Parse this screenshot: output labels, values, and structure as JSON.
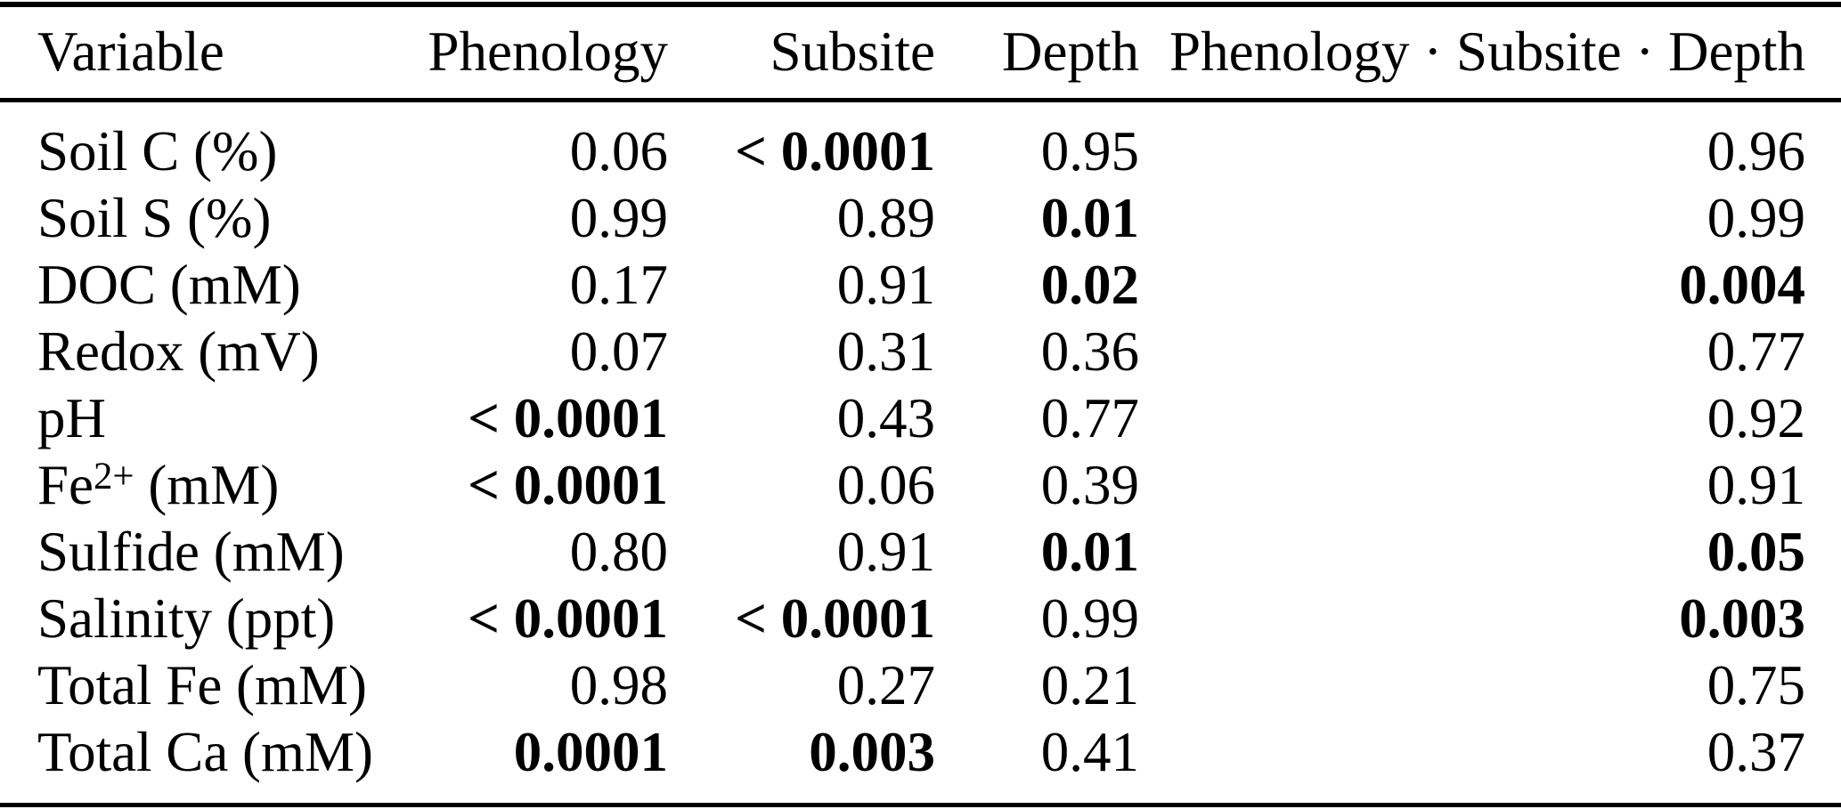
{
  "page": {
    "background": "#ffffff",
    "text_color": "#000000",
    "rule_color": "#000000"
  },
  "table": {
    "columns": [
      {
        "label": "Variable"
      },
      {
        "label": "Phenology"
      },
      {
        "label": "Subsite"
      },
      {
        "label": "Depth"
      },
      {
        "label": "Phenology · Subsite · Depth"
      }
    ],
    "rows": [
      {
        "variable": {
          "base": "Soil C (%)",
          "sup": "",
          "suffix": ""
        },
        "values": [
          {
            "text": "0.06",
            "bold": false
          },
          {
            "text": "< 0.0001",
            "bold": true
          },
          {
            "text": "0.95",
            "bold": false
          },
          {
            "text": "0.96",
            "bold": false
          }
        ]
      },
      {
        "variable": {
          "base": "Soil S (%)",
          "sup": "",
          "suffix": ""
        },
        "values": [
          {
            "text": "0.99",
            "bold": false
          },
          {
            "text": "0.89",
            "bold": false
          },
          {
            "text": "0.01",
            "bold": true
          },
          {
            "text": "0.99",
            "bold": false
          }
        ]
      },
      {
        "variable": {
          "base": "DOC (mM)",
          "sup": "",
          "suffix": ""
        },
        "values": [
          {
            "text": "0.17",
            "bold": false
          },
          {
            "text": "0.91",
            "bold": false
          },
          {
            "text": "0.02",
            "bold": true
          },
          {
            "text": "0.004",
            "bold": true
          }
        ]
      },
      {
        "variable": {
          "base": "Redox (mV)",
          "sup": "",
          "suffix": ""
        },
        "values": [
          {
            "text": "0.07",
            "bold": false
          },
          {
            "text": "0.31",
            "bold": false
          },
          {
            "text": "0.36",
            "bold": false
          },
          {
            "text": "0.77",
            "bold": false
          }
        ]
      },
      {
        "variable": {
          "base": "pH",
          "sup": "",
          "suffix": ""
        },
        "values": [
          {
            "text": "< 0.0001",
            "bold": true
          },
          {
            "text": "0.43",
            "bold": false
          },
          {
            "text": "0.77",
            "bold": false
          },
          {
            "text": "0.92",
            "bold": false
          }
        ]
      },
      {
        "variable": {
          "base": "Fe",
          "sup": "2+",
          "suffix": " (mM)"
        },
        "values": [
          {
            "text": "< 0.0001",
            "bold": true
          },
          {
            "text": "0.06",
            "bold": false
          },
          {
            "text": "0.39",
            "bold": false
          },
          {
            "text": "0.91",
            "bold": false
          }
        ]
      },
      {
        "variable": {
          "base": "Sulfide (mM)",
          "sup": "",
          "suffix": ""
        },
        "values": [
          {
            "text": "0.80",
            "bold": false
          },
          {
            "text": "0.91",
            "bold": false
          },
          {
            "text": "0.01",
            "bold": true
          },
          {
            "text": "0.05",
            "bold": true
          }
        ]
      },
      {
        "variable": {
          "base": "Salinity (ppt)",
          "sup": "",
          "suffix": ""
        },
        "values": [
          {
            "text": "< 0.0001",
            "bold": true
          },
          {
            "text": "< 0.0001",
            "bold": true
          },
          {
            "text": "0.99",
            "bold": false
          },
          {
            "text": "0.003",
            "bold": true
          }
        ]
      },
      {
        "variable": {
          "base": "Total Fe (mM)",
          "sup": "",
          "suffix": ""
        },
        "values": [
          {
            "text": "0.98",
            "bold": false
          },
          {
            "text": "0.27",
            "bold": false
          },
          {
            "text": "0.21",
            "bold": false
          },
          {
            "text": "0.75",
            "bold": false
          }
        ]
      },
      {
        "variable": {
          "base": "Total Ca (mM)",
          "sup": "",
          "suffix": ""
        },
        "values": [
          {
            "text": "0.0001",
            "bold": true
          },
          {
            "text": "0.003",
            "bold": true
          },
          {
            "text": "0.41",
            "bold": false
          },
          {
            "text": "0.37",
            "bold": false
          }
        ]
      }
    ]
  }
}
